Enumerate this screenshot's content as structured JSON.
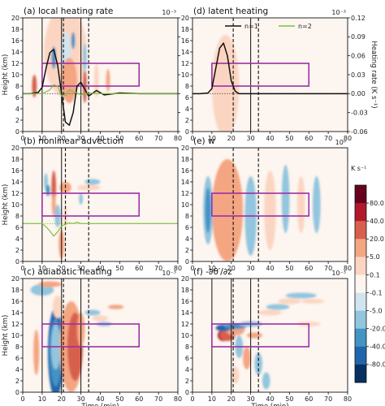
{
  "figure": {
    "colorbar": {
      "label": "K s⁻¹",
      "ticks": [
        "80.0",
        "40.0",
        "20.0",
        "5.0",
        "0.1",
        "-0.1",
        "-5.0",
        "-20.0",
        "-40.0",
        "-80.0"
      ],
      "colors": [
        "#67001f",
        "#b2182b",
        "#d6604d",
        "#f4a582",
        "#fbd5c2",
        "#fdf5ef",
        "#d1e5f0",
        "#92c5de",
        "#4393c3",
        "#2166ac",
        "#053061"
      ]
    },
    "legend": [
      {
        "label": "n=1",
        "color": "#111111"
      },
      {
        "label": "n=2",
        "color": "#7dc242"
      }
    ],
    "xlabel": "Time (min)",
    "ylabel": "Height (km)",
    "right_ylabel": "Heating rate (K s⁻¹)",
    "x_ticks": [
      "0",
      "10",
      "20",
      "30",
      "40",
      "50",
      "60",
      "70",
      "80"
    ],
    "y_ticks": [
      "0",
      "2",
      "4",
      "6",
      "8",
      "10",
      "12",
      "14",
      "16",
      "18",
      "20"
    ],
    "right_ticks": [
      "0.12",
      "0.09",
      "0.06",
      "0.03",
      "0.00",
      "-0.03",
      "-0.06"
    ]
  },
  "chart_data": [
    {
      "type": "heatmap",
      "panel": "(a)",
      "title": "(a) local heating rate",
      "scale": "10⁻³",
      "xlim": [
        0,
        80
      ],
      "ylim": [
        0,
        20
      ],
      "box": {
        "x": [
          10,
          60
        ],
        "y": [
          8,
          12
        ]
      },
      "vlines_solid": [
        10,
        20,
        30
      ],
      "vlines_dashed": [
        21,
        34
      ],
      "right_axis": {
        "label": "Heating rate (K s⁻¹)",
        "ylim": [
          -0.06,
          0.12
        ]
      },
      "series": [
        {
          "name": "n=1",
          "x": [
            0,
            4,
            8,
            10,
            12,
            14,
            16,
            18,
            20,
            22,
            24,
            26,
            28,
            30,
            34,
            38,
            42,
            50,
            60,
            80
          ],
          "y": [
            0,
            0,
            0.002,
            0.01,
            0.04,
            0.065,
            0.07,
            0.045,
            0.0,
            -0.045,
            -0.05,
            -0.03,
            0.012,
            0.018,
            -0.004,
            0.005,
            -0.002,
            0.001,
            0,
            0
          ]
        },
        {
          "name": "n=2",
          "x": [
            0,
            6,
            10,
            12,
            14,
            16,
            18,
            20,
            22,
            24,
            26,
            28,
            30,
            34,
            40,
            50,
            80
          ],
          "y": [
            0,
            0,
            0,
            0.003,
            0.006,
            0.014,
            0.012,
            -0.004,
            -0.003,
            0.006,
            0.003,
            0.001,
            -0.002,
            0.001,
            0,
            0,
            0
          ]
        }
      ]
    },
    {
      "type": "heatmap",
      "panel": "(b)",
      "title": "(b) nonlinear advection",
      "scale": "",
      "xlim": [
        0,
        80
      ],
      "ylim": [
        0,
        20
      ],
      "box": {
        "x": [
          10,
          60
        ],
        "y": [
          8,
          12
        ]
      },
      "vlines_solid": [
        10,
        20
      ],
      "vlines_dashed": [
        22,
        34
      ],
      "series": [
        {
          "name": "n=2",
          "x": [
            0,
            8,
            10,
            12,
            14,
            16,
            18,
            20,
            22,
            24,
            26,
            28,
            30,
            34,
            40,
            80
          ],
          "y": [
            0,
            0,
            0,
            -0.005,
            -0.012,
            -0.02,
            -0.013,
            -0.004,
            -0.001,
            0.001,
            0.0,
            0.002,
            0,
            0,
            0,
            0
          ]
        }
      ]
    },
    {
      "type": "heatmap",
      "panel": "(c)",
      "title": "(c) adiabatic heating",
      "scale": "10⁻³",
      "xlim": [
        0,
        80
      ],
      "ylim": [
        0,
        20
      ],
      "box": {
        "x": [
          10,
          60
        ],
        "y": [
          8,
          12
        ]
      },
      "vlines_solid": [
        10,
        20,
        30
      ],
      "vlines_dashed": [
        21,
        34
      ]
    },
    {
      "type": "heatmap",
      "panel": "(d)",
      "title": "(d) latent heating",
      "scale": "10⁻³",
      "xlim": [
        0,
        80
      ],
      "ylim": [
        0,
        20
      ],
      "box": {
        "x": [
          10,
          60
        ],
        "y": [
          8,
          12
        ]
      },
      "vlines_solid": [
        30
      ],
      "vlines_dashed": [
        21,
        34
      ],
      "right_axis": {
        "label": "Heating rate (K s⁻¹)",
        "ylim": [
          -0.06,
          0.12
        ]
      },
      "series": [
        {
          "name": "n=1",
          "x": [
            0,
            4,
            8,
            10,
            12,
            14,
            16,
            18,
            20,
            22,
            24,
            26,
            30,
            34,
            40,
            80
          ],
          "y": [
            0,
            0,
            0.001,
            0.008,
            0.04,
            0.072,
            0.08,
            0.06,
            0.02,
            0.004,
            0.0,
            0,
            0,
            0,
            0,
            0
          ]
        }
      ]
    },
    {
      "type": "heatmap",
      "panel": "(e)",
      "title": "(e) w",
      "scale": "10⁰",
      "xlim": [
        0,
        80
      ],
      "ylim": [
        0,
        20
      ],
      "box": {
        "x": [
          10,
          60
        ],
        "y": [
          8,
          12
        ]
      },
      "vlines_solid": [],
      "vlines_dashed": [
        21,
        34
      ]
    },
    {
      "type": "heatmap",
      "panel": "(f)",
      "title": "(f) -∂θ′/∂z",
      "scale": "10⁻³",
      "xlim": [
        0,
        80
      ],
      "ylim": [
        0,
        20
      ],
      "box": {
        "x": [
          10,
          60
        ],
        "y": [
          8,
          12
        ]
      },
      "vlines_solid": [
        10,
        20,
        30
      ],
      "vlines_dashed": [
        21,
        34
      ]
    }
  ]
}
